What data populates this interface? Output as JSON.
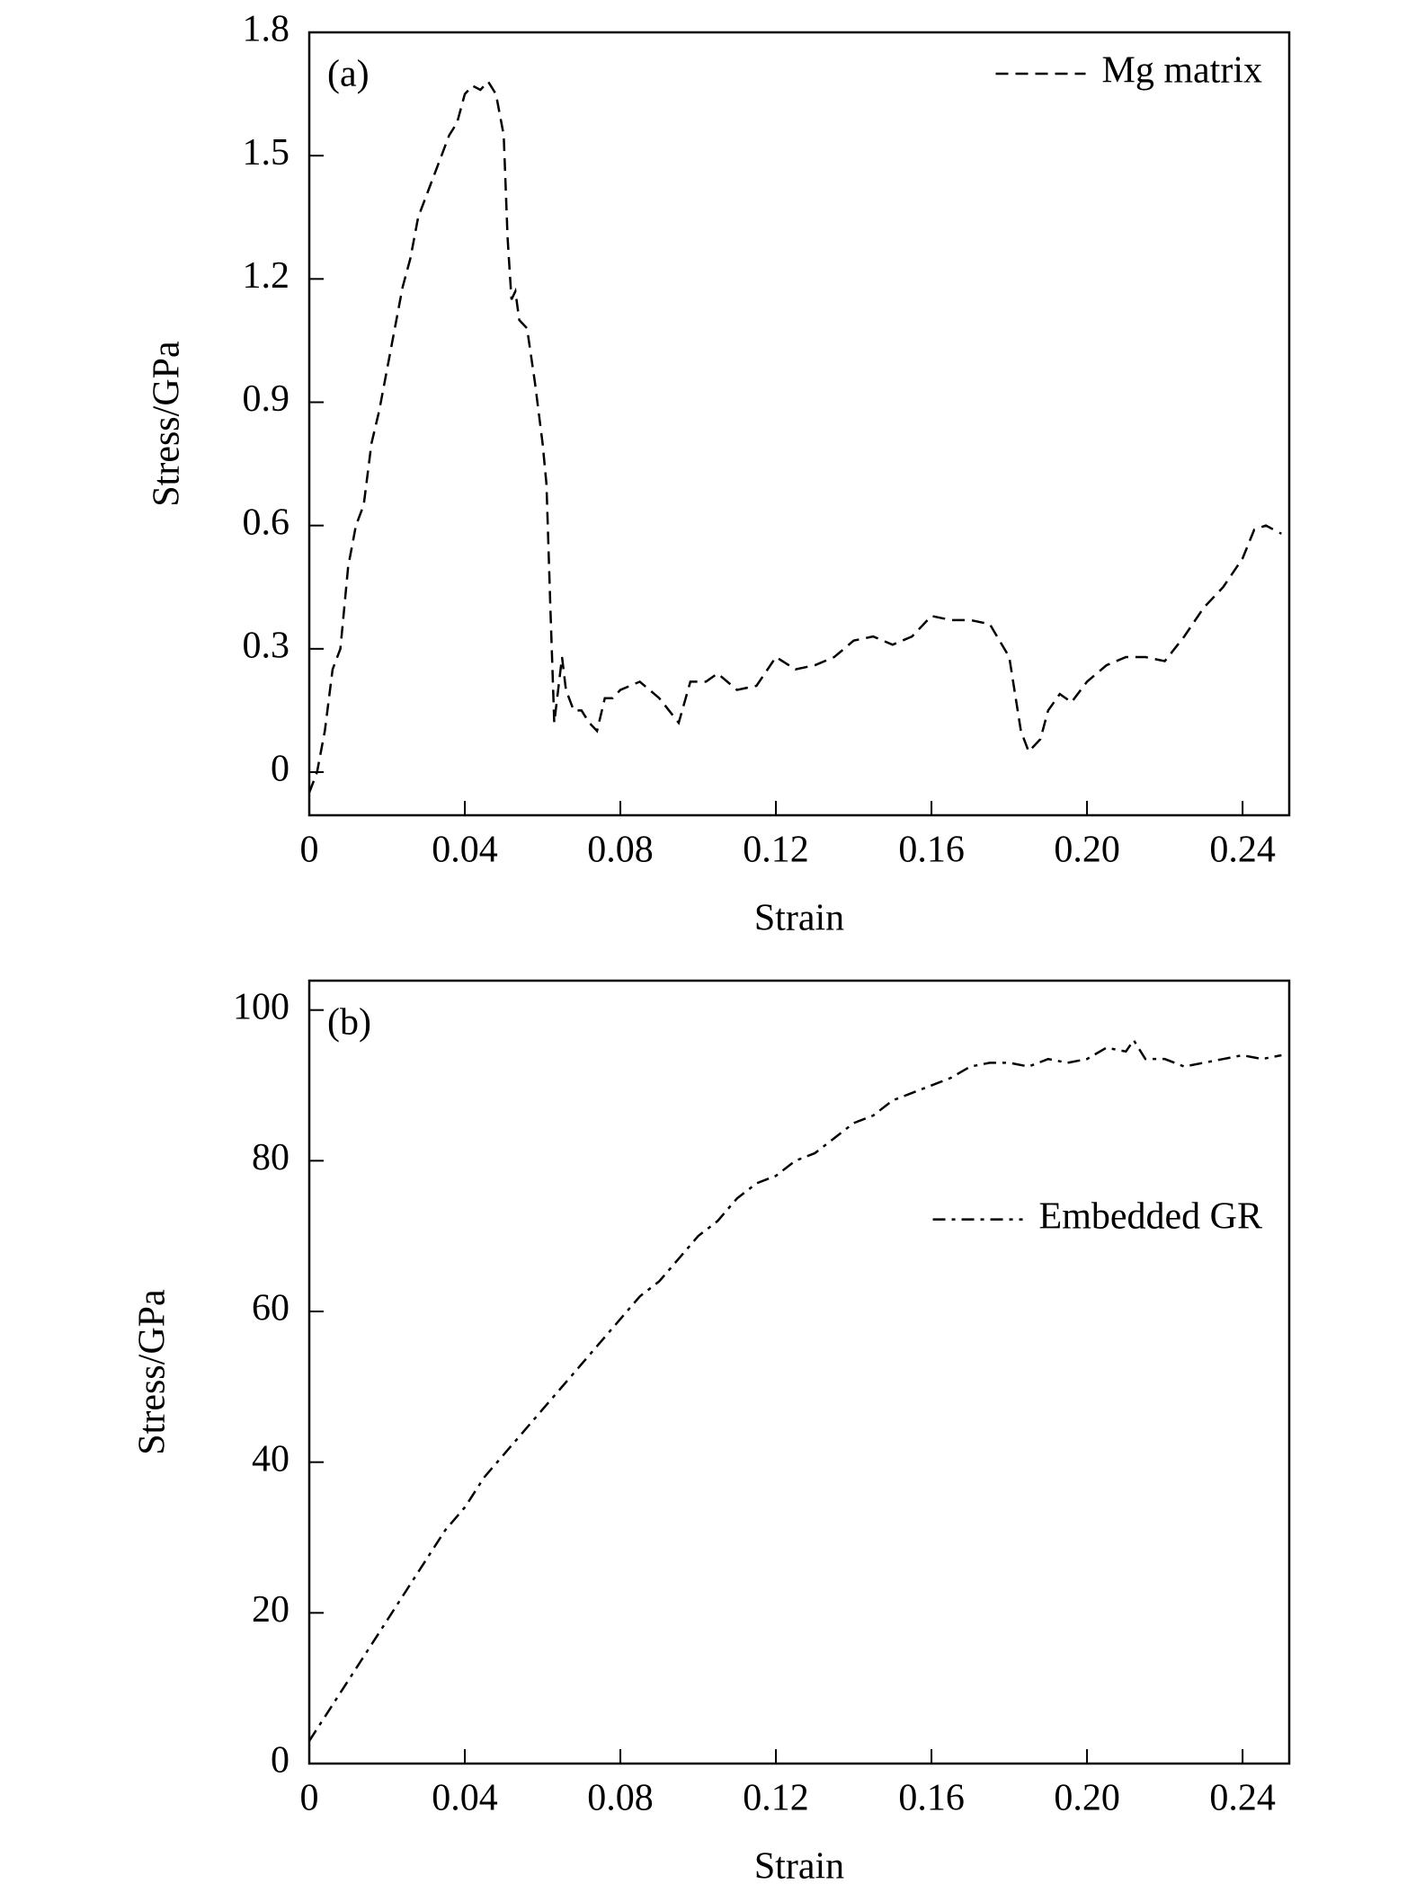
{
  "chart_data": [
    {
      "type": "line",
      "annotation": "(a)",
      "xlabel": "Strain",
      "ylabel": "Stress/GPa",
      "xlim": [
        0,
        0.252
      ],
      "ylim": [
        -0.105,
        1.8
      ],
      "xticks": [
        0,
        0.04,
        0.08,
        0.12,
        0.16,
        {
          "value": 0.2,
          "label": "0.20"
        },
        0.24
      ],
      "yticks": [
        0,
        0.3,
        0.6,
        0.9,
        1.2,
        1.5,
        1.8
      ],
      "legend": "upper right",
      "x": [
        0,
        0.002,
        0.004,
        0.006,
        0.008,
        0.01,
        0.012,
        0.014,
        0.016,
        0.018,
        0.02,
        0.022,
        0.024,
        0.026,
        0.028,
        0.03,
        0.032,
        0.034,
        0.036,
        0.038,
        0.04,
        0.042,
        0.044,
        0.046,
        0.048,
        0.05,
        0.051,
        0.052,
        0.053,
        0.054,
        0.056,
        0.058,
        0.06,
        0.061,
        0.062,
        0.063,
        0.064,
        0.065,
        0.066,
        0.068,
        0.07,
        0.072,
        0.074,
        0.076,
        0.078,
        0.08,
        0.085,
        0.09,
        0.095,
        0.098,
        0.102,
        0.105,
        0.11,
        0.115,
        0.12,
        0.125,
        0.13,
        0.135,
        0.14,
        0.145,
        0.15,
        0.155,
        0.16,
        0.165,
        0.17,
        0.175,
        0.18,
        0.183,
        0.185,
        0.188,
        0.19,
        0.193,
        0.196,
        0.2,
        0.205,
        0.21,
        0.215,
        0.22,
        0.225,
        0.23,
        0.235,
        0.24,
        0.243,
        0.246,
        0.25
      ],
      "series": [
        {
          "name": "Mg matrix",
          "color": "#000000",
          "linestyle": "dashed",
          "values": [
            -0.05,
            0,
            0.1,
            0.25,
            0.3,
            0.5,
            0.6,
            0.65,
            0.8,
            0.88,
            0.98,
            1.08,
            1.18,
            1.25,
            1.35,
            1.4,
            1.45,
            1.5,
            1.55,
            1.58,
            1.65,
            1.67,
            1.66,
            1.68,
            1.65,
            1.55,
            1.3,
            1.15,
            1.17,
            1.1,
            1.08,
            0.95,
            0.8,
            0.7,
            0.4,
            0.12,
            0.2,
            0.28,
            0.2,
            0.15,
            0.15,
            0.12,
            0.1,
            0.18,
            0.18,
            0.2,
            0.22,
            0.18,
            0.12,
            0.22,
            0.22,
            0.24,
            0.2,
            0.21,
            0.28,
            0.25,
            0.26,
            0.28,
            0.32,
            0.33,
            0.31,
            0.33,
            0.38,
            0.37,
            0.37,
            0.36,
            0.28,
            0.1,
            0.05,
            0.08,
            0.15,
            0.19,
            0.17,
            0.22,
            0.26,
            0.28,
            0.28,
            0.27,
            0.33,
            0.4,
            0.45,
            0.52,
            0.59,
            0.6,
            0.58
          ]
        }
      ]
    },
    {
      "type": "line",
      "annotation": "(b)",
      "xlabel": "Strain",
      "ylabel": "Stress/GPa",
      "xlim": [
        0,
        0.252
      ],
      "ylim": [
        0,
        103.9
      ],
      "xticks": [
        0,
        0.04,
        0.08,
        0.12,
        0.16,
        {
          "value": 0.2,
          "label": "0.20"
        },
        0.24
      ],
      "yticks": [
        0,
        20,
        40,
        60,
        80,
        100
      ],
      "legend": "center right",
      "x": [
        0,
        0.005,
        0.01,
        0.015,
        0.02,
        0.025,
        0.03,
        0.035,
        0.04,
        0.045,
        0.05,
        0.055,
        0.06,
        0.065,
        0.07,
        0.075,
        0.08,
        0.085,
        0.09,
        0.095,
        0.1,
        0.105,
        0.11,
        0.115,
        0.12,
        0.125,
        0.13,
        0.135,
        0.14,
        0.145,
        0.15,
        0.155,
        0.16,
        0.165,
        0.17,
        0.175,
        0.18,
        0.185,
        0.19,
        0.195,
        0.2,
        0.205,
        0.21,
        0.212,
        0.215,
        0.22,
        0.225,
        0.23,
        0.235,
        0.24,
        0.245,
        0.25
      ],
      "series": [
        {
          "name": "Embedded GR",
          "color": "#000000",
          "linestyle": "dashdot",
          "values": [
            3,
            7,
            11,
            15,
            19,
            23,
            27,
            31,
            34,
            38,
            41,
            44,
            47,
            50,
            53,
            56,
            59,
            62,
            64,
            67,
            70,
            72,
            75,
            77,
            78,
            80,
            81,
            83,
            85,
            86,
            88,
            89,
            90,
            91,
            92.5,
            93,
            93,
            92.5,
            93.5,
            93,
            93.5,
            95,
            94.5,
            96,
            93.5,
            93.5,
            92.5,
            93,
            93.5,
            94,
            93.5,
            94
          ]
        }
      ]
    }
  ]
}
